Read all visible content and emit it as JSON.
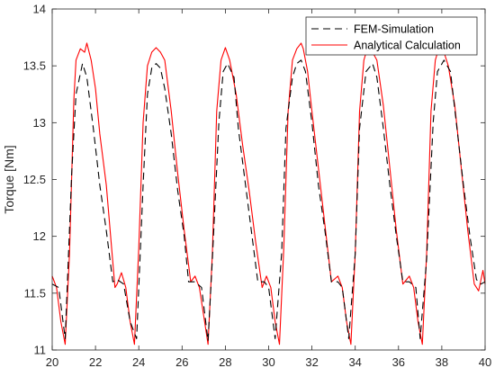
{
  "chart_data": {
    "type": "line",
    "title": "",
    "xlabel": "",
    "ylabel": "Torque [Nm]",
    "xlim": [
      20,
      40
    ],
    "ylim": [
      11,
      14
    ],
    "x_ticks": [
      20,
      22,
      24,
      26,
      28,
      30,
      32,
      34,
      36,
      38,
      40
    ],
    "y_ticks": [
      11,
      11.5,
      12,
      12.5,
      13,
      13.5,
      14
    ],
    "y_tick_labels": [
      "11",
      "11.5",
      "12",
      "12.5",
      "13",
      "13.5",
      "14"
    ],
    "grid": false,
    "legend_position": "top-right",
    "series": [
      {
        "name": "FEM-Simulation",
        "color": "#000000",
        "dash": "dashed",
        "x": [
          20.0,
          20.3,
          20.6,
          20.9,
          21.1,
          21.4,
          21.6,
          21.9,
          22.2,
          22.5,
          22.8,
          23.0,
          23.3,
          23.6,
          23.9,
          24.2,
          24.4,
          24.6,
          24.8,
          25.0,
          25.2,
          25.5,
          25.8,
          26.1,
          26.3,
          26.6,
          26.9,
          27.2,
          27.4,
          27.7,
          27.9,
          28.1,
          28.4,
          28.6,
          28.9,
          29.2,
          29.5,
          29.8,
          30.0,
          30.3,
          30.6,
          30.8,
          31.1,
          31.3,
          31.5,
          31.7,
          32.0,
          32.3,
          32.6,
          32.9,
          33.2,
          33.4,
          33.7,
          34.0,
          34.2,
          34.5,
          34.8,
          35.0,
          35.3,
          35.6,
          35.9,
          36.2,
          36.5,
          36.8,
          37.0,
          37.3,
          37.6,
          37.8,
          38.1,
          38.4,
          38.7,
          39.0,
          39.3,
          39.6,
          39.8,
          40.0
        ],
        "y": [
          11.58,
          11.55,
          11.1,
          12.55,
          13.25,
          13.52,
          13.4,
          12.95,
          12.45,
          12.05,
          11.6,
          11.62,
          11.58,
          11.25,
          11.1,
          12.45,
          13.25,
          13.48,
          13.52,
          13.48,
          13.3,
          12.9,
          12.4,
          12.0,
          11.6,
          11.6,
          11.55,
          11.08,
          11.8,
          13.0,
          13.45,
          13.52,
          13.4,
          12.95,
          12.5,
          12.05,
          11.6,
          11.6,
          11.55,
          11.1,
          11.85,
          12.95,
          13.4,
          13.52,
          13.55,
          13.45,
          13.0,
          12.45,
          12.05,
          11.6,
          11.6,
          11.55,
          11.1,
          11.85,
          12.95,
          13.45,
          13.52,
          13.4,
          12.95,
          12.45,
          12.0,
          11.6,
          11.6,
          11.55,
          11.1,
          11.8,
          13.0,
          13.45,
          13.55,
          13.45,
          12.95,
          12.45,
          12.0,
          11.62,
          11.58,
          11.6
        ]
      },
      {
        "name": "Analytical Calculation",
        "color": "#ff0000",
        "dash": "solid",
        "x": [
          20.0,
          20.2,
          20.4,
          20.6,
          20.8,
          21.0,
          21.1,
          21.3,
          21.5,
          21.6,
          21.8,
          22.0,
          22.2,
          22.5,
          22.7,
          22.9,
          23.0,
          23.2,
          23.4,
          23.6,
          23.8,
          24.0,
          24.2,
          24.4,
          24.6,
          24.8,
          25.0,
          25.2,
          25.5,
          25.8,
          26.1,
          26.4,
          26.6,
          26.8,
          27.0,
          27.2,
          27.4,
          27.6,
          27.8,
          28.0,
          28.2,
          28.5,
          28.8,
          29.1,
          29.4,
          29.7,
          29.9,
          30.1,
          30.3,
          30.5,
          30.7,
          30.9,
          31.1,
          31.3,
          31.5,
          31.6,
          31.8,
          32.0,
          32.3,
          32.6,
          32.9,
          33.2,
          33.4,
          33.6,
          33.8,
          34.0,
          34.2,
          34.4,
          34.6,
          34.8,
          35.0,
          35.3,
          35.6,
          35.9,
          36.2,
          36.5,
          36.7,
          36.9,
          37.1,
          37.3,
          37.5,
          37.7,
          37.9,
          38.1,
          38.3,
          38.6,
          38.9,
          39.2,
          39.5,
          39.7,
          39.9,
          40.0
        ],
        "y": [
          11.65,
          11.55,
          11.25,
          11.05,
          11.85,
          13.2,
          13.55,
          13.65,
          13.62,
          13.7,
          13.55,
          13.3,
          12.9,
          12.45,
          12.0,
          11.55,
          11.58,
          11.68,
          11.55,
          11.25,
          11.05,
          11.9,
          13.0,
          13.5,
          13.62,
          13.66,
          13.62,
          13.55,
          13.1,
          12.55,
          12.05,
          11.6,
          11.65,
          11.55,
          11.3,
          11.05,
          11.85,
          13.1,
          13.55,
          13.66,
          13.55,
          13.25,
          12.8,
          12.4,
          11.95,
          11.55,
          11.65,
          11.55,
          11.25,
          11.05,
          11.9,
          13.1,
          13.55,
          13.65,
          13.7,
          13.65,
          13.45,
          13.1,
          12.6,
          12.1,
          11.6,
          11.65,
          11.55,
          11.25,
          11.05,
          11.85,
          13.1,
          13.55,
          13.68,
          13.62,
          13.55,
          13.15,
          12.6,
          12.05,
          11.58,
          11.65,
          11.55,
          11.25,
          11.05,
          11.85,
          13.1,
          13.55,
          13.68,
          13.62,
          13.5,
          13.15,
          12.6,
          12.05,
          11.58,
          11.52,
          11.7,
          11.58
        ]
      }
    ]
  }
}
